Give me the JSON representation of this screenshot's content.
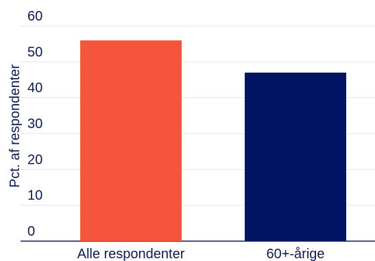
{
  "chart_data": {
    "type": "bar",
    "categories": [
      "Alle respondenter",
      "60+-årige"
    ],
    "values": [
      56,
      47
    ],
    "colors": [
      "#f4553b",
      "#021464"
    ],
    "ylabel": "Pct. af respondenter",
    "xlabel": "",
    "title": "",
    "ylim": [
      0,
      60
    ],
    "yticks": [
      0,
      10,
      20,
      30,
      40,
      50,
      60
    ],
    "grid": true,
    "legend": "none"
  }
}
